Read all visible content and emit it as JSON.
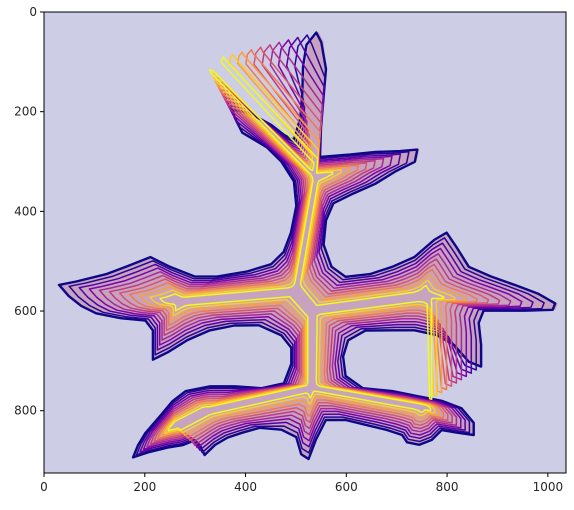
{
  "chart_data": {
    "type": "contour",
    "title": "",
    "xlabel": "",
    "ylabel": "",
    "xlim": [
      0,
      1036
    ],
    "ylim": [
      925,
      0
    ],
    "y_axis_inverted": true,
    "grid": false,
    "legend": "none",
    "background_color": "#cdcde6",
    "x_ticks": [
      0,
      200,
      400,
      600,
      800,
      1000
    ],
    "y_ticks": [
      0,
      200,
      400,
      600,
      800
    ],
    "x_tick_labels": [
      "0",
      "200",
      "400",
      "600",
      "800",
      "1000"
    ],
    "y_tick_labels": [
      "0",
      "200",
      "400",
      "600",
      "800"
    ],
    "level_colors": [
      "#0d0887",
      "#2a0593",
      "#5302a3",
      "#7e03a8",
      "#a22b97",
      "#c03a83",
      "#d8576b",
      "#ed7953",
      "#fb9f3a",
      "#fdca26",
      "#f0f921"
    ],
    "shape_fill": "#c7a3c0",
    "centers": [
      [
        530,
        600
      ],
      [
        500,
        560
      ],
      [
        540,
        330
      ],
      [
        320,
        100
      ],
      [
        270,
        580
      ],
      [
        750,
        570
      ],
      [
        320,
        800
      ],
      [
        530,
        750
      ],
      [
        750,
        790
      ],
      [
        260,
        830
      ]
    ],
    "outline": [
      [
        25,
        547
      ],
      [
        60,
        540
      ],
      [
        120,
        525
      ],
      [
        165,
        508
      ],
      [
        210,
        490
      ],
      [
        250,
        510
      ],
      [
        300,
        530
      ],
      [
        345,
        530
      ],
      [
        400,
        520
      ],
      [
        450,
        505
      ],
      [
        475,
        480
      ],
      [
        490,
        440
      ],
      [
        500,
        390
      ],
      [
        495,
        340
      ],
      [
        470,
        300
      ],
      [
        440,
        270
      ],
      [
        395,
        245
      ],
      [
        380,
        215
      ],
      [
        375,
        198
      ],
      [
        410,
        205
      ],
      [
        450,
        225
      ],
      [
        475,
        245
      ],
      [
        495,
        255
      ],
      [
        508,
        210
      ],
      [
        512,
        160
      ],
      [
        518,
        110
      ],
      [
        525,
        65
      ],
      [
        545,
        40
      ],
      [
        555,
        60
      ],
      [
        560,
        110
      ],
      [
        555,
        170
      ],
      [
        550,
        230
      ],
      [
        548,
        290
      ],
      [
        610,
        285
      ],
      [
        660,
        280
      ],
      [
        710,
        278
      ],
      [
        745,
        275
      ],
      [
        740,
        300
      ],
      [
        700,
        320
      ],
      [
        660,
        345
      ],
      [
        615,
        365
      ],
      [
        575,
        385
      ],
      [
        560,
        420
      ],
      [
        556,
        465
      ],
      [
        572,
        510
      ],
      [
        600,
        530
      ],
      [
        645,
        525
      ],
      [
        690,
        510
      ],
      [
        735,
        490
      ],
      [
        775,
        455
      ],
      [
        800,
        440
      ],
      [
        820,
        470
      ],
      [
        845,
        510
      ],
      [
        890,
        530
      ],
      [
        940,
        548
      ],
      [
        985,
        565
      ],
      [
        1020,
        585
      ],
      [
        1015,
        598
      ],
      [
        960,
        600
      ],
      [
        910,
        600
      ],
      [
        875,
        600
      ],
      [
        865,
        625
      ],
      [
        870,
        670
      ],
      [
        870,
        710
      ],
      [
        845,
        700
      ],
      [
        815,
        670
      ],
      [
        780,
        650
      ],
      [
        735,
        640
      ],
      [
        690,
        640
      ],
      [
        640,
        640
      ],
      [
        605,
        660
      ],
      [
        595,
        690
      ],
      [
        600,
        730
      ],
      [
        635,
        755
      ],
      [
        690,
        760
      ],
      [
        740,
        770
      ],
      [
        790,
        780
      ],
      [
        830,
        795
      ],
      [
        855,
        825
      ],
      [
        855,
        850
      ],
      [
        820,
        845
      ],
      [
        790,
        840
      ],
      [
        770,
        860
      ],
      [
        745,
        870
      ],
      [
        720,
        865
      ],
      [
        710,
        850
      ],
      [
        680,
        840
      ],
      [
        640,
        830
      ],
      [
        600,
        820
      ],
      [
        560,
        820
      ],
      [
        540,
        860
      ],
      [
        525,
        900
      ],
      [
        510,
        890
      ],
      [
        500,
        855
      ],
      [
        470,
        840
      ],
      [
        430,
        835
      ],
      [
        395,
        845
      ],
      [
        365,
        855
      ],
      [
        340,
        870
      ],
      [
        320,
        890
      ],
      [
        310,
        870
      ],
      [
        300,
        860
      ],
      [
        275,
        870
      ],
      [
        245,
        875
      ],
      [
        205,
        885
      ],
      [
        175,
        895
      ],
      [
        185,
        870
      ],
      [
        200,
        845
      ],
      [
        230,
        810
      ],
      [
        255,
        780
      ],
      [
        280,
        760
      ],
      [
        330,
        750
      ],
      [
        380,
        750
      ],
      [
        430,
        755
      ],
      [
        475,
        745
      ],
      [
        490,
        705
      ],
      [
        490,
        675
      ],
      [
        470,
        650
      ],
      [
        425,
        630
      ],
      [
        380,
        630
      ],
      [
        330,
        640
      ],
      [
        285,
        660
      ],
      [
        245,
        685
      ],
      [
        215,
        700
      ],
      [
        215,
        670
      ],
      [
        215,
        640
      ],
      [
        200,
        620
      ],
      [
        150,
        615
      ],
      [
        100,
        605
      ],
      [
        70,
        590
      ],
      [
        45,
        570
      ]
    ]
  }
}
